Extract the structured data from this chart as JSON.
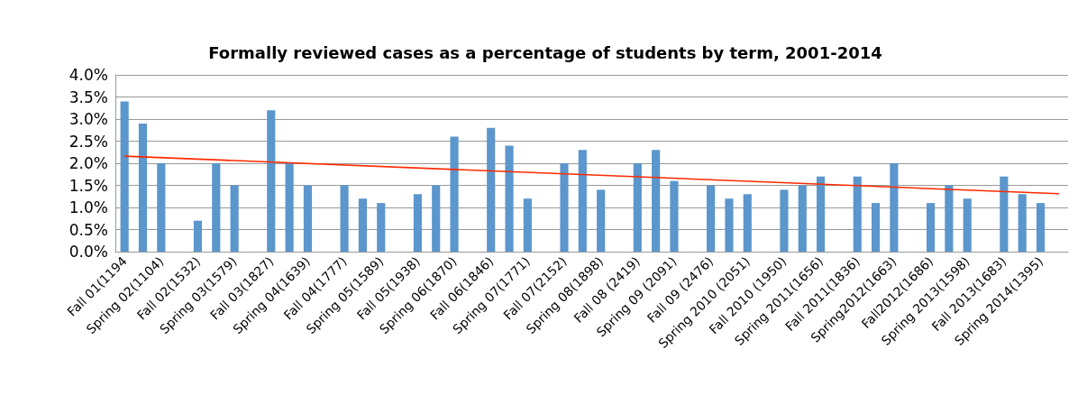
{
  "chart_data": {
    "type": "bar",
    "title": "Formally reviewed cases as a percentage of students by term, 2001-2014",
    "categories": [
      "Fall 01(1194",
      null,
      "Spring 02(1104)",
      null,
      "Fall 02(1532)",
      null,
      "Spring 03(1579)",
      null,
      "Fall 03(1827)",
      null,
      "Spring 04(1639)",
      null,
      "Fall 04(1777)",
      null,
      "Spring 05(1589)",
      null,
      "Fall 05(1938)",
      null,
      "Spring 06(1870)",
      null,
      "Fall 06(1846)",
      null,
      "Spring 07(1771)",
      null,
      "Fall 07(2152)",
      null,
      "Spring 08(1898)",
      null,
      "Fall 08 (2419)",
      null,
      "Spring 09 (2091)",
      null,
      "Fall 09 (2476)",
      null,
      "Spring 2010 (2051)",
      null,
      "Fall 2010 (1950)",
      null,
      "Spring 2011(1656)",
      null,
      "Fall 2011(1836)",
      null,
      "Spring2012(1663)",
      null,
      "Fall2012(1686)",
      null,
      "Spring 2013(1598)",
      null,
      "Fall 2013(1683)",
      null,
      "Spring 2014(1395)",
      null
    ],
    "series": [
      {
        "color": "#5b96cc",
        "values": [
          3.4,
          2.9,
          2.0,
          null,
          0.7,
          2.0,
          1.5,
          null,
          3.2,
          2.0,
          1.5,
          null,
          1.5,
          1.2,
          1.1,
          null,
          1.3,
          1.5,
          2.6,
          null,
          2.8,
          2.4,
          1.2,
          null,
          2.0,
          2.3,
          1.4,
          null,
          2.0,
          2.3,
          1.6,
          null,
          1.5,
          1.2,
          1.3,
          null,
          1.4,
          1.5,
          1.7,
          null,
          1.7,
          1.1,
          2.0,
          null,
          1.1,
          1.5,
          1.2,
          null,
          1.7,
          1.3,
          1.1,
          null
        ]
      },
      {
        "type": "line",
        "color": "#ff2a00",
        "values": [
          2.16,
          null,
          null,
          null,
          null,
          null,
          null,
          null,
          null,
          null,
          null,
          null,
          null,
          null,
          null,
          null,
          null,
          null,
          null,
          null,
          null,
          null,
          null,
          null,
          null,
          null,
          null,
          null,
          null,
          null,
          null,
          null,
          null,
          null,
          null,
          null,
          null,
          null,
          null,
          null,
          null,
          null,
          null,
          null,
          null,
          null,
          null,
          null,
          null,
          null,
          null,
          1.31
        ]
      }
    ],
    "ylim": [
      0,
      4
    ],
    "yticks": [
      {
        "value": 0,
        "label": "0.0%"
      },
      {
        "value": 0.5,
        "label": "0.5%"
      },
      {
        "value": 1,
        "label": "1.0%"
      },
      {
        "value": 1.5,
        "label": "1.5%"
      },
      {
        "value": 2,
        "label": "2.0%"
      },
      {
        "value": 2.5,
        "label": "2.5%"
      },
      {
        "value": 3,
        "label": "3.0%"
      },
      {
        "value": 3.5,
        "label": "3.5%"
      },
      {
        "value": 4,
        "label": "4.0%"
      }
    ],
    "grid": "y",
    "marker": "none",
    "line_style": "solid"
  }
}
